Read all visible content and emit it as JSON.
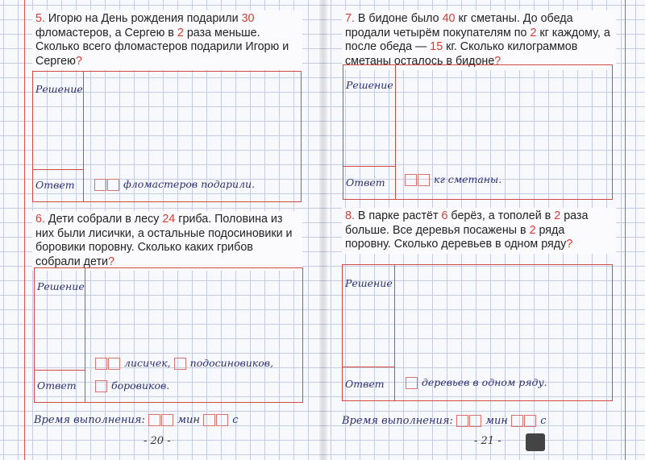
{
  "labels": {
    "solution": "Решение",
    "answer": "Ответ",
    "time": "Время выполнения:",
    "min": "мин",
    "sec": "с"
  },
  "pages": {
    "left": "- 20 -",
    "right": "- 21 -"
  },
  "logo": "Л",
  "problems": [
    {
      "segments": [
        [
          "5.",
          1
        ],
        [
          " Игорю на День рождения подарили ",
          0
        ],
        [
          "30",
          1
        ],
        [
          " фломастеров, а Сергею в ",
          0
        ],
        [
          "2",
          1
        ],
        [
          " раза меньше. Сколько всего фломастеров подарили Игорю и Сергею",
          0
        ],
        [
          "?",
          1
        ]
      ],
      "answer": [
        "фломастеров подарили."
      ]
    },
    {
      "segments": [
        [
          "6.",
          1
        ],
        [
          " Дети собрали в лесу ",
          0
        ],
        [
          "24",
          1
        ],
        [
          " гриба. Половина из них были лисички, а остальные подосиновики и боровики поровну. Сколько каких грибов собрали дети",
          0
        ],
        [
          "?",
          1
        ]
      ],
      "answer": [
        "лисичек,",
        "подосиновиков,",
        "боровиков."
      ]
    },
    {
      "segments": [
        [
          "7.",
          1
        ],
        [
          " В бидоне было ",
          0
        ],
        [
          "40",
          1
        ],
        [
          " кг сметаны. До обеда продали четырём покупателям по ",
          0
        ],
        [
          "2",
          1
        ],
        [
          " кг каждому, а после обеда — ",
          0
        ],
        [
          "15",
          1
        ],
        [
          " кг. Сколько килограммов сметаны осталось в бидоне",
          0
        ],
        [
          "?",
          1
        ]
      ],
      "answer": [
        "кг сметаны."
      ]
    },
    {
      "segments": [
        [
          "8.",
          1
        ],
        [
          " В парке растёт ",
          0
        ],
        [
          "6",
          1
        ],
        [
          " берёз, а тополей в ",
          0
        ],
        [
          "2",
          1
        ],
        [
          " раза больше. Все деревья посажены в ",
          0
        ],
        [
          "2",
          1
        ],
        [
          " ряда поровну. Сколько деревьев в одном ряду",
          0
        ],
        [
          "?",
          1
        ]
      ],
      "answer": [
        "деревьев в одном ряду."
      ]
    }
  ],
  "colors": {
    "accent": "#d63a2f",
    "grid": "#c5cbe0",
    "handwriting": "#2c2f6e"
  }
}
